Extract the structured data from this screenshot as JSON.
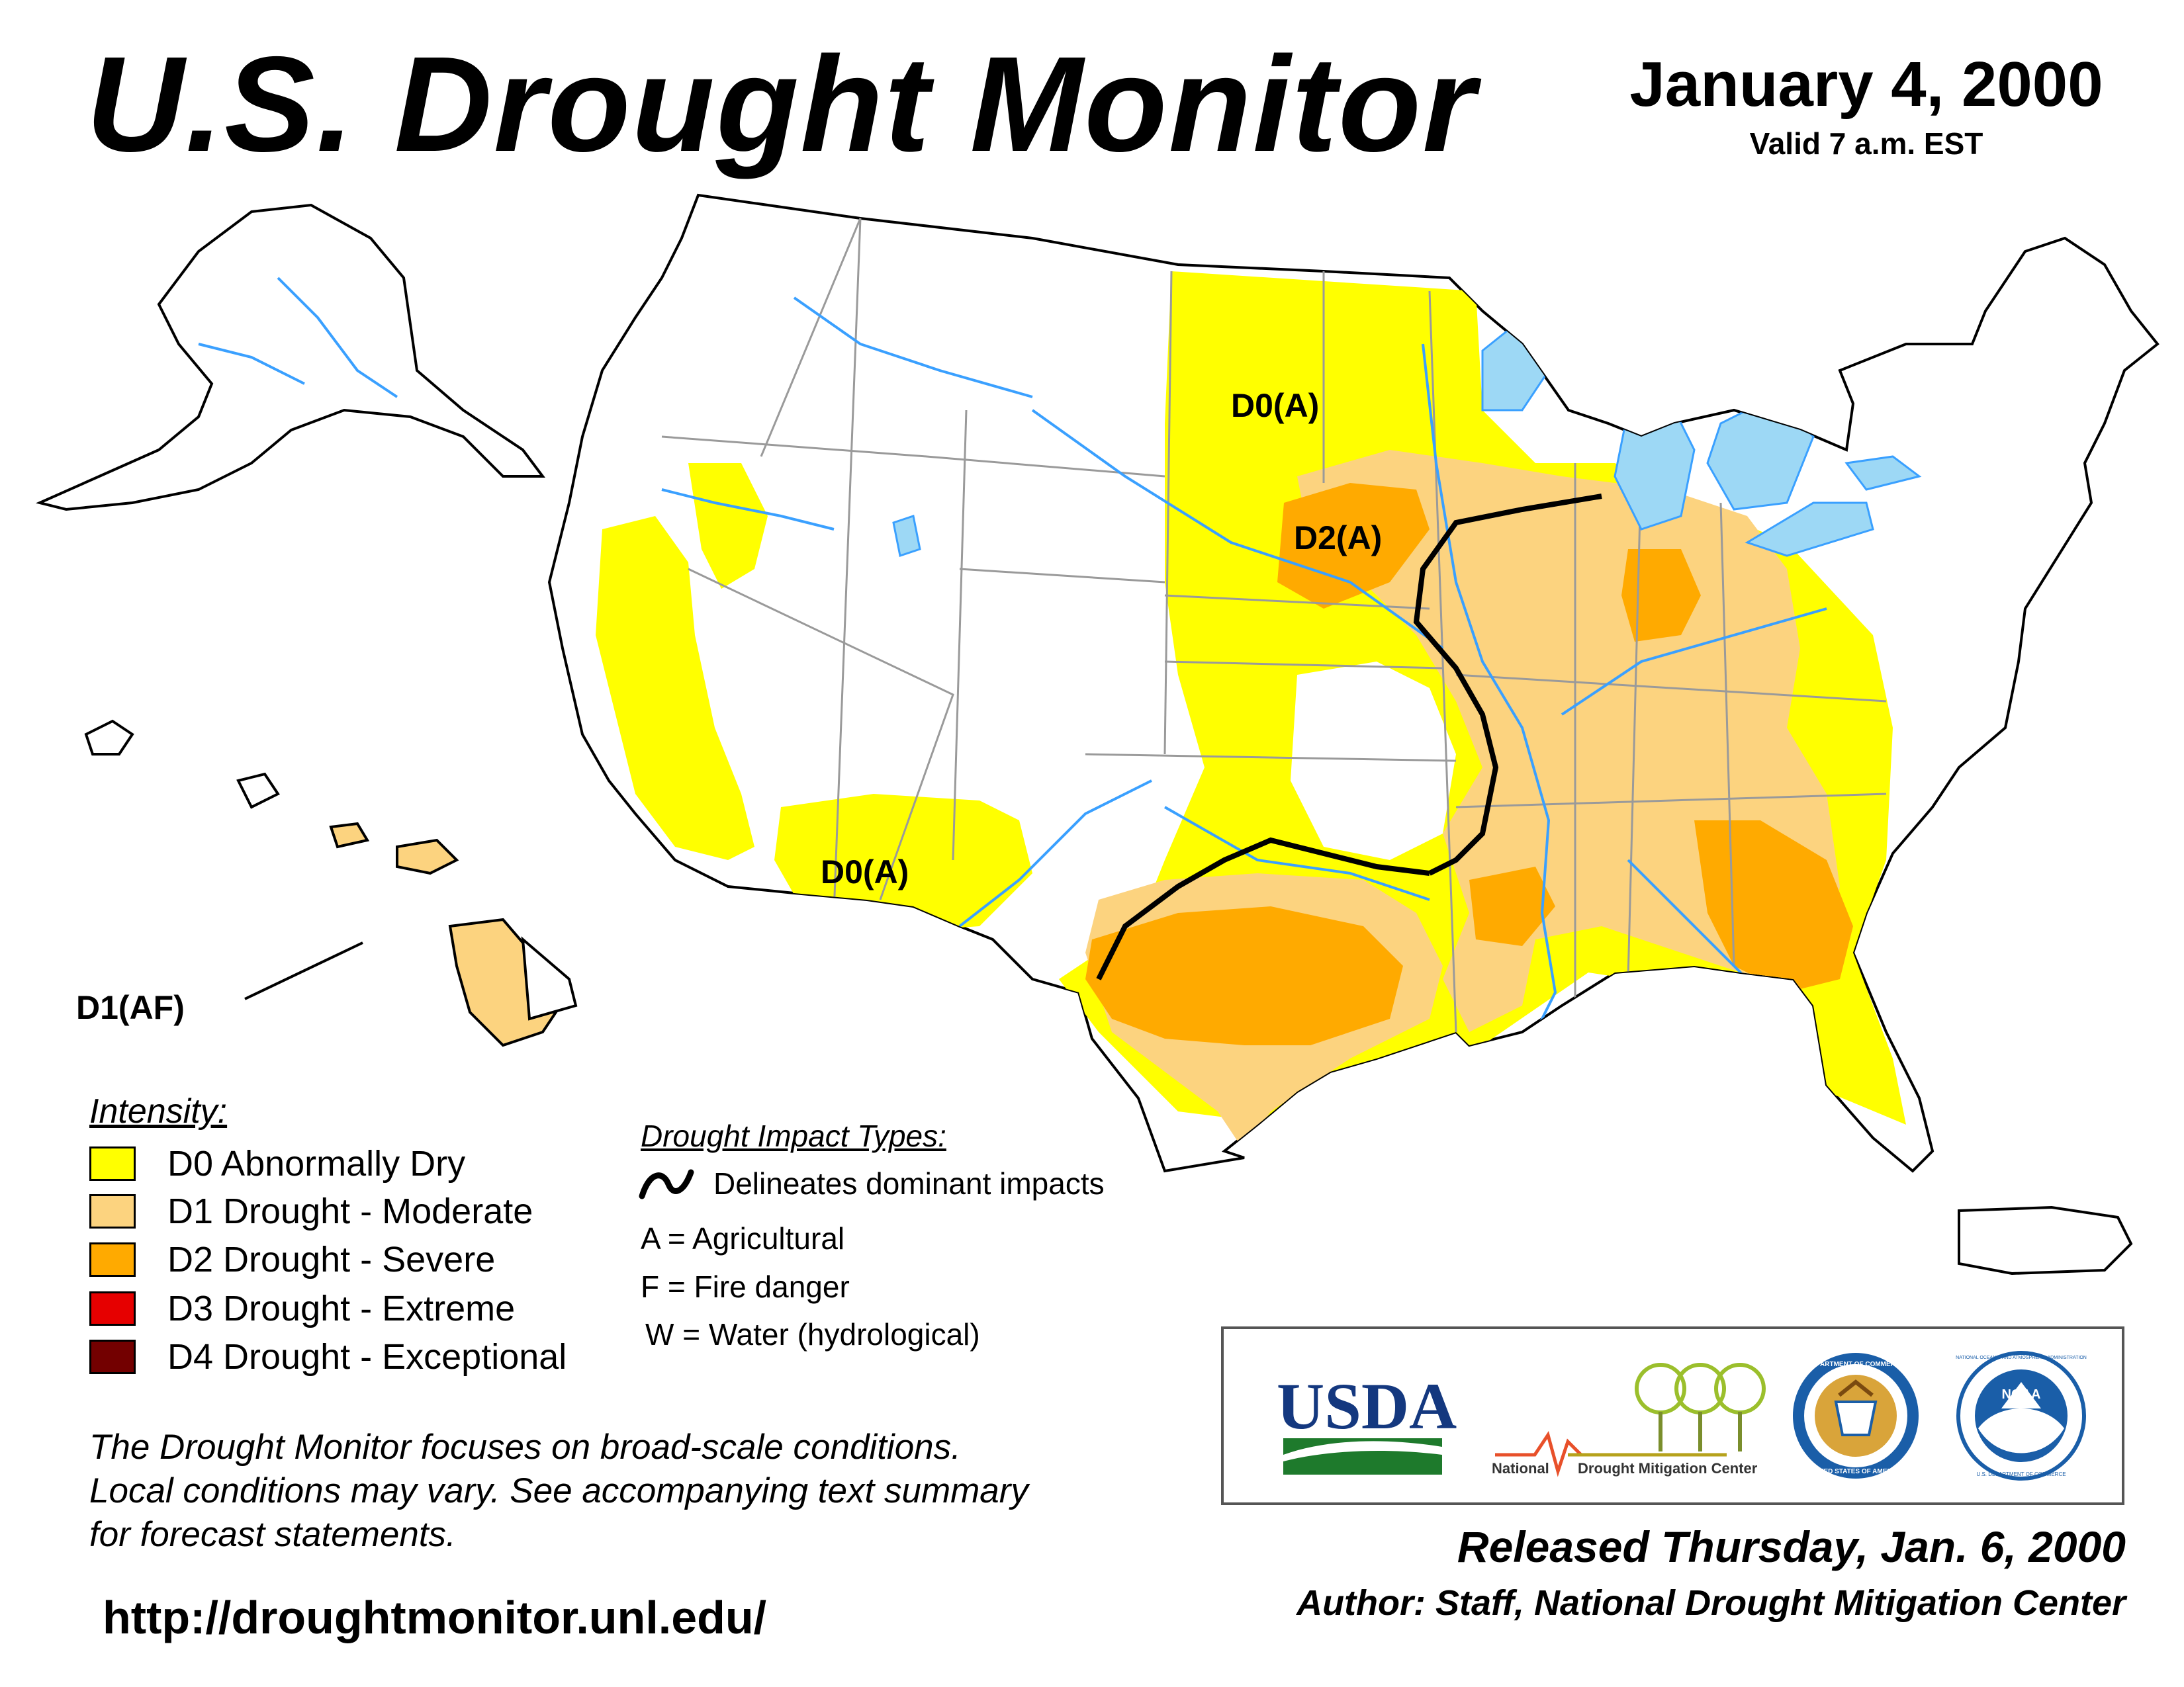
{
  "header": {
    "title": "U.S. Drought Monitor",
    "date": "January 4, 2000",
    "valid_time": "Valid 7 a.m. EST"
  },
  "map": {
    "labels": {
      "north_plains": "D0(A)",
      "central_plains": "D2(A)",
      "southwest": "D0(A)",
      "hawaii": "D1(AF)"
    }
  },
  "legend": {
    "intensity_title": "Intensity:",
    "items": [
      {
        "label": "D0 Abnormally Dry",
        "color": "#FFFF00"
      },
      {
        "label": "D1 Drought - Moderate",
        "color": "#FCD37F"
      },
      {
        "label": "D2 Drought - Severe",
        "color": "#FFAA00"
      },
      {
        "label": "D3 Drought - Extreme",
        "color": "#E60000"
      },
      {
        "label": "D4 Drought - Exceptional",
        "color": "#730000"
      }
    ]
  },
  "impact": {
    "title": "Drought Impact Types:",
    "delineates": "Delineates dominant impacts",
    "types": [
      "A = Agricultural",
      "F = Fire danger",
      "W = Water (hydrological)"
    ]
  },
  "disclaimer": {
    "line1": "The Drought Monitor focuses on broad-scale conditions.",
    "line2": "Local conditions may vary. See accompanying text summary",
    "line3": "for forecast statements."
  },
  "url": "http://droughtmonitor.unl.edu/",
  "logos": {
    "usda": "USDA",
    "ndmc_left": "National",
    "ndmc_right": "Drought Mitigation Center",
    "commerce": "DEPARTMENT OF COMMERCE",
    "commerce_bottom": "UNITED STATES OF AMERICA",
    "noaa": "NOAA",
    "noaa_ring": "NATIONAL OCEANIC AND ATMOSPHERIC ADMINISTRATION",
    "noaa_bottom": "U.S. DEPARTMENT OF COMMERCE"
  },
  "footer": {
    "released": "Released Thursday, Jan. 6, 2000",
    "author": "Author: Staff, National Drought Mitigation Center"
  }
}
